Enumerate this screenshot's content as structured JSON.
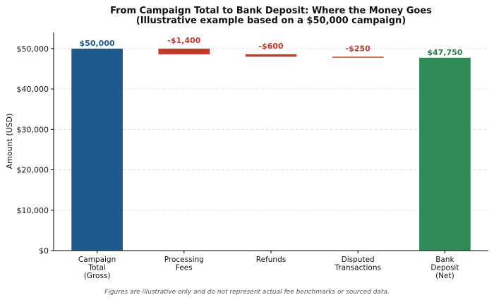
{
  "chart_data": {
    "type": "bar",
    "subtype": "waterfall",
    "title": "From Campaign Total to Bank Deposit: Where the Money Goes",
    "subtitle": "(Illustrative example based on a $50,000 campaign)",
    "ylabel": "Amount (USD)",
    "xlabel": "",
    "ylim": [
      0,
      54000
    ],
    "yticks": [
      0,
      10000,
      20000,
      30000,
      40000,
      50000
    ],
    "ytick_labels": [
      "$0",
      "$10,000",
      "$20,000",
      "$30,000",
      "$40,000",
      "$50,000"
    ],
    "grid": true,
    "categories": [
      [
        "Campaign",
        "Total",
        "(Gross)"
      ],
      [
        "Processing",
        "Fees"
      ],
      [
        "Refunds"
      ],
      [
        "Disputed",
        "Transactions"
      ],
      [
        "Bank",
        "Deposit",
        "(Net)"
      ]
    ],
    "bars": [
      {
        "kind": "total",
        "value": 50000,
        "label": "$50,000",
        "color": "#1f5a8c"
      },
      {
        "kind": "decrease",
        "value": -1400,
        "label": "-$1,400",
        "color": "#c0392b"
      },
      {
        "kind": "decrease",
        "value": -600,
        "label": "-$600",
        "color": "#c0392b"
      },
      {
        "kind": "decrease",
        "value": -250,
        "label": "-$250",
        "color": "#c0392b"
      },
      {
        "kind": "total",
        "value": 47750,
        "label": "$47,750",
        "color": "#2e8b57"
      }
    ],
    "label_colors": {
      "total": "#1f5a8c",
      "decrease": "#c0392b",
      "net": "#2e7d4f"
    }
  },
  "footnote": "Figures are illustrative only and do not represent actual fee benchmarks or sourced data."
}
